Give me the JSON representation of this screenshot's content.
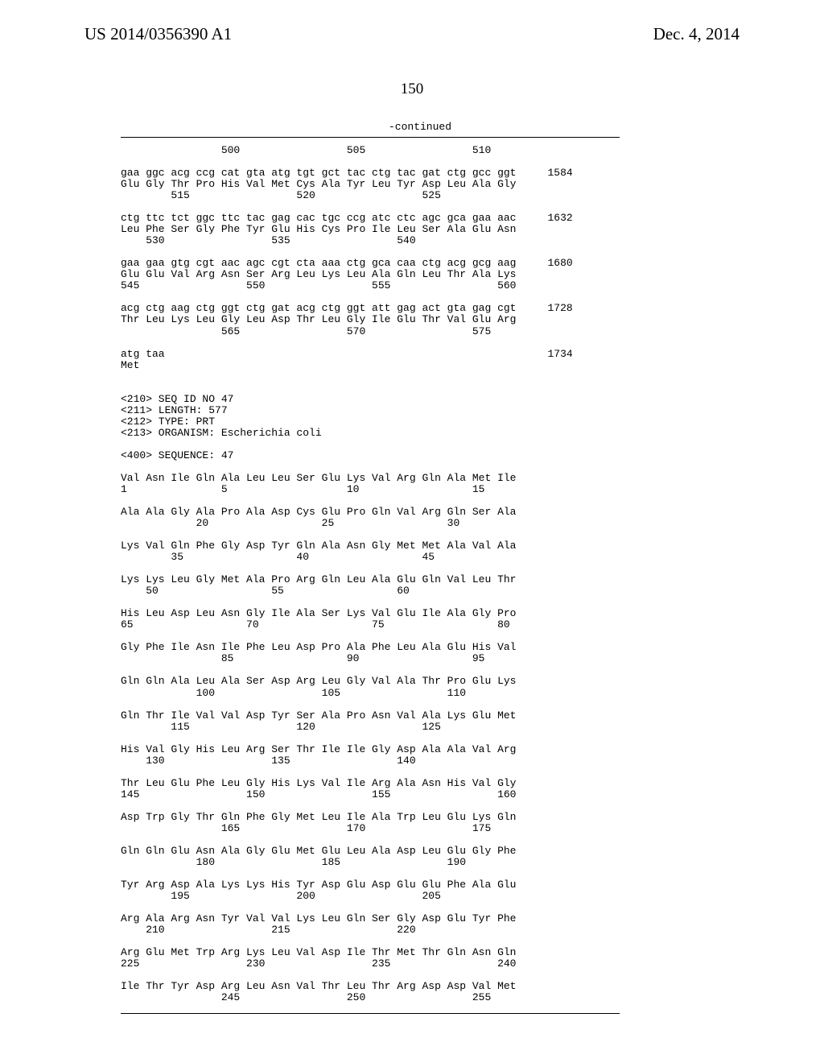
{
  "header_left": "US 2014/0356390 A1",
  "header_right": "Dec. 4, 2014",
  "page_number": "150",
  "continued_label": "-continued",
  "seq": {
    "l01": "                500                 505                 510",
    "l02": "",
    "l03": "gaa ggc acg ccg cat gta atg tgt gct tac ctg tac gat ctg gcc ggt     1584",
    "l04": "Glu Gly Thr Pro His Val Met Cys Ala Tyr Leu Tyr Asp Leu Ala Gly",
    "l05": "        515                 520                 525",
    "l06": "",
    "l07": "ctg ttc tct ggc ttc tac gag cac tgc ccg atc ctc agc gca gaa aac     1632",
    "l08": "Leu Phe Ser Gly Phe Tyr Glu His Cys Pro Ile Leu Ser Ala Glu Asn",
    "l09": "    530                 535                 540",
    "l10": "",
    "l11": "gaa gaa gtg cgt aac agc cgt cta aaa ctg gca caa ctg acg gcg aag     1680",
    "l12": "Glu Glu Val Arg Asn Ser Arg Leu Lys Leu Ala Gln Leu Thr Ala Lys",
    "l13": "545                 550                 555                 560",
    "l14": "",
    "l15": "acg ctg aag ctg ggt ctg gat acg ctg ggt att gag act gta gag cgt     1728",
    "l16": "Thr Leu Lys Leu Gly Leu Asp Thr Leu Gly Ile Glu Thr Val Glu Arg",
    "l17": "                565                 570                 575",
    "l18": "",
    "l19": "atg taa                                                             1734",
    "l20": "Met",
    "l21": "",
    "l22": "",
    "l23": "<210> SEQ ID NO 47",
    "l24": "<211> LENGTH: 577",
    "l25": "<212> TYPE: PRT",
    "l26": "<213> ORGANISM: Escherichia coli",
    "l27": "",
    "l28": "<400> SEQUENCE: 47",
    "l29": "",
    "l30": "Val Asn Ile Gln Ala Leu Leu Ser Glu Lys Val Arg Gln Ala Met Ile",
    "l31": "1               5                   10                  15",
    "l32": "",
    "l33": "Ala Ala Gly Ala Pro Ala Asp Cys Glu Pro Gln Val Arg Gln Ser Ala",
    "l34": "            20                  25                  30",
    "l35": "",
    "l36": "Lys Val Gln Phe Gly Asp Tyr Gln Ala Asn Gly Met Met Ala Val Ala",
    "l37": "        35                  40                  45",
    "l38": "",
    "l39": "Lys Lys Leu Gly Met Ala Pro Arg Gln Leu Ala Glu Gln Val Leu Thr",
    "l40": "    50                  55                  60",
    "l41": "",
    "l42": "His Leu Asp Leu Asn Gly Ile Ala Ser Lys Val Glu Ile Ala Gly Pro",
    "l43": "65                  70                  75                  80",
    "l44": "",
    "l45": "Gly Phe Ile Asn Ile Phe Leu Asp Pro Ala Phe Leu Ala Glu His Val",
    "l46": "                85                  90                  95",
    "l47": "",
    "l48": "Gln Gln Ala Leu Ala Ser Asp Arg Leu Gly Val Ala Thr Pro Glu Lys",
    "l49": "            100                 105                 110",
    "l50": "",
    "l51": "Gln Thr Ile Val Val Asp Tyr Ser Ala Pro Asn Val Ala Lys Glu Met",
    "l52": "        115                 120                 125",
    "l53": "",
    "l54": "His Val Gly His Leu Arg Ser Thr Ile Ile Gly Asp Ala Ala Val Arg",
    "l55": "    130                 135                 140",
    "l56": "",
    "l57": "Thr Leu Glu Phe Leu Gly His Lys Val Ile Arg Ala Asn His Val Gly",
    "l58": "145                 150                 155                 160",
    "l59": "",
    "l60": "Asp Trp Gly Thr Gln Phe Gly Met Leu Ile Ala Trp Leu Glu Lys Gln",
    "l61": "                165                 170                 175",
    "l62": "",
    "l63": "Gln Gln Glu Asn Ala Gly Glu Met Glu Leu Ala Asp Leu Glu Gly Phe",
    "l64": "            180                 185                 190",
    "l65": "",
    "l66": "Tyr Arg Asp Ala Lys Lys His Tyr Asp Glu Asp Glu Glu Phe Ala Glu",
    "l67": "        195                 200                 205",
    "l68": "",
    "l69": "Arg Ala Arg Asn Tyr Val Val Lys Leu Gln Ser Gly Asp Glu Tyr Phe",
    "l70": "    210                 215                 220",
    "l71": "",
    "l72": "Arg Glu Met Trp Arg Lys Leu Val Asp Ile Thr Met Thr Gln Asn Gln",
    "l73": "225                 230                 235                 240",
    "l74": "",
    "l75": "Ile Thr Tyr Asp Arg Leu Asn Val Thr Leu Thr Arg Asp Asp Val Met",
    "l76": "                245                 250                 255"
  }
}
